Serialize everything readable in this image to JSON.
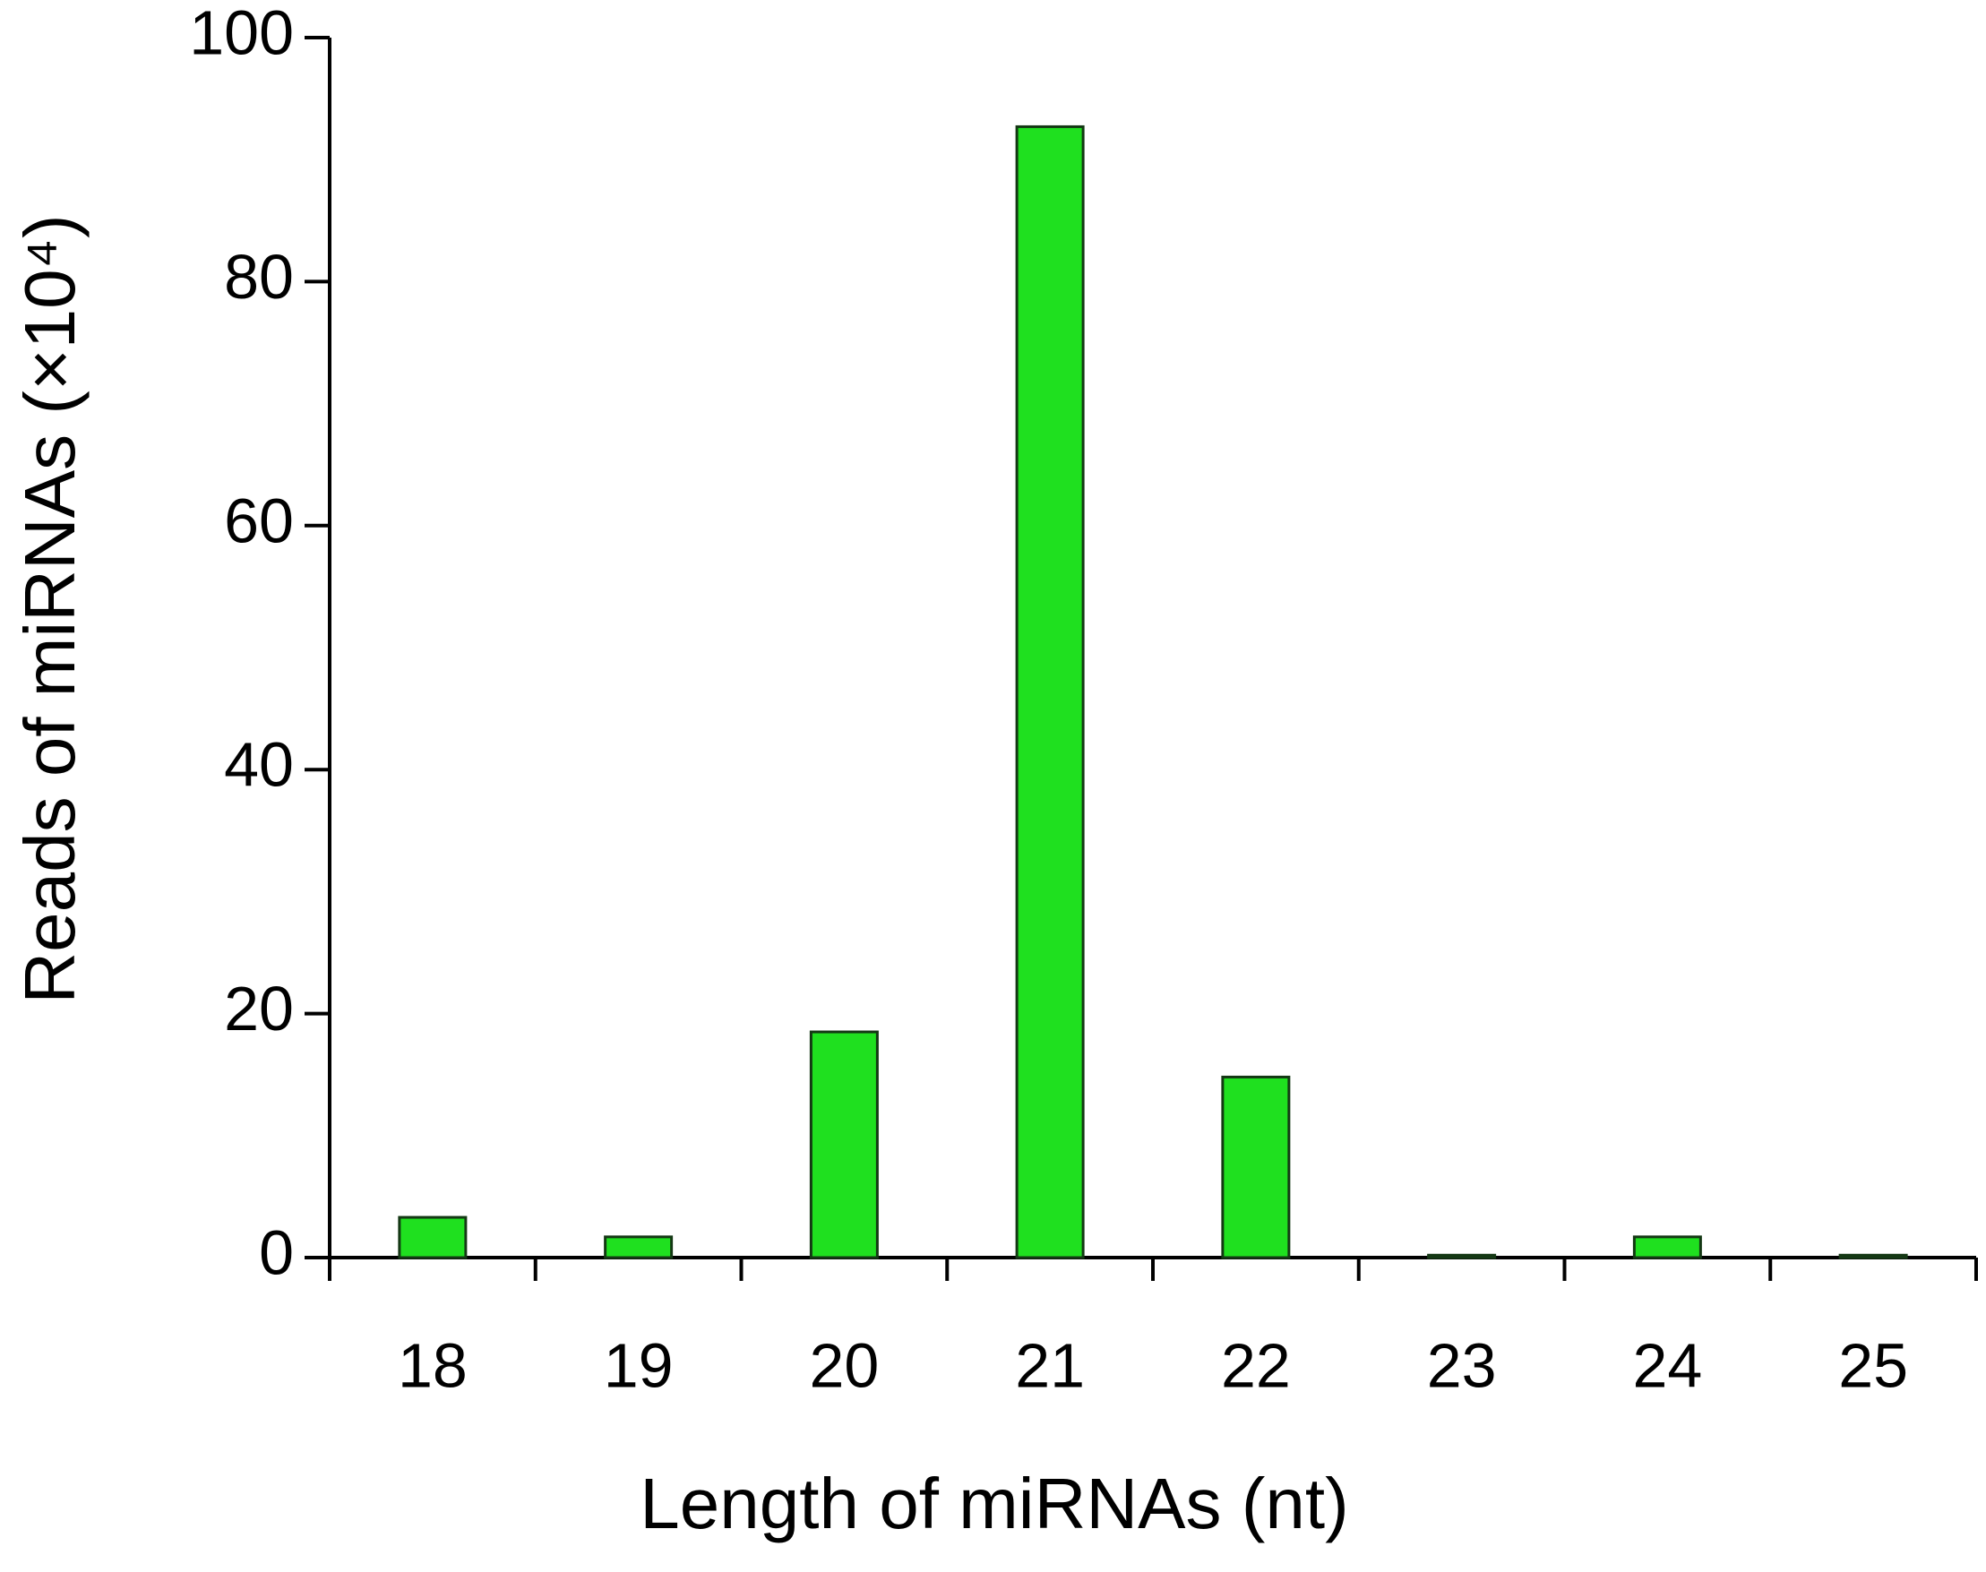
{
  "chart_data": {
    "type": "bar",
    "x_label": "Length of miRNAs (nt)",
    "y_label": "Reads of miRNAs (×10⁴)",
    "categories": [
      "18",
      "19",
      "20",
      "21",
      "22",
      "23",
      "24",
      "25"
    ],
    "values": [
      3.3,
      1.7,
      18.5,
      92.7,
      14.8,
      0.2,
      1.7,
      0.2
    ],
    "color": "#1fe01f",
    "ylim": [
      0,
      100
    ],
    "yticks": [
      0,
      20,
      40,
      60,
      80,
      100
    ],
    "grid": false
  }
}
